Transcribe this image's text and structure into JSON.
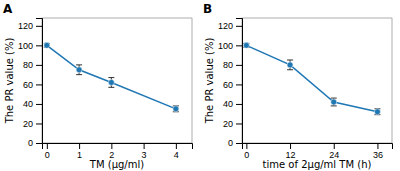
{
  "chart_data": [
    {
      "type": "line",
      "title": "A",
      "x_label": "TM (μg/ml)",
      "y_label": "The PR value (%)",
      "x": [
        0,
        1,
        2,
        4
      ],
      "series": [
        {
          "values": [
            100,
            75,
            62,
            35
          ],
          "errors": [
            2,
            5,
            5,
            3
          ],
          "marker": "circle"
        }
      ],
      "xlim": [
        -0.15,
        4.5
      ],
      "ylim": [
        0,
        128
      ],
      "xticks": [
        0,
        1,
        2,
        3,
        4
      ],
      "yticks": [
        0,
        20,
        40,
        60,
        80,
        100,
        120
      ]
    },
    {
      "type": "line",
      "title": "B",
      "x_label": "time of 2μg/ml TM (h)",
      "y_label": "The PR value (%)",
      "x": [
        0,
        12,
        24,
        36
      ],
      "series": [
        {
          "values": [
            100,
            80,
            42,
            32
          ],
          "errors": [
            2,
            5,
            4,
            3
          ],
          "marker": "circle"
        }
      ],
      "xlim": [
        -1.2,
        40
      ],
      "ylim": [
        0,
        128
      ],
      "xticks": [
        0,
        12,
        24,
        36
      ],
      "yticks": [
        0,
        20,
        40,
        60,
        80,
        100,
        120
      ]
    }
  ]
}
